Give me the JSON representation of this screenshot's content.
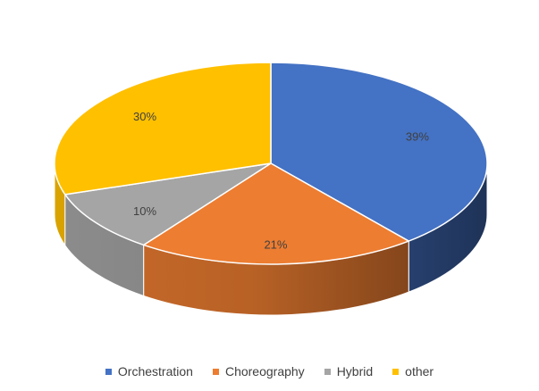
{
  "chart_data": {
    "type": "pie",
    "style": "3d",
    "categories": [
      "Orchestration",
      "Choreography",
      "Hybrid",
      "other"
    ],
    "values": [
      39,
      21,
      10,
      30
    ],
    "labels": [
      "39%",
      "21%",
      "10%",
      "30%"
    ],
    "colors": [
      "#4472C4",
      "#ED7D31",
      "#A5A5A5",
      "#FFC000"
    ],
    "title": "",
    "legend": "bottom"
  }
}
